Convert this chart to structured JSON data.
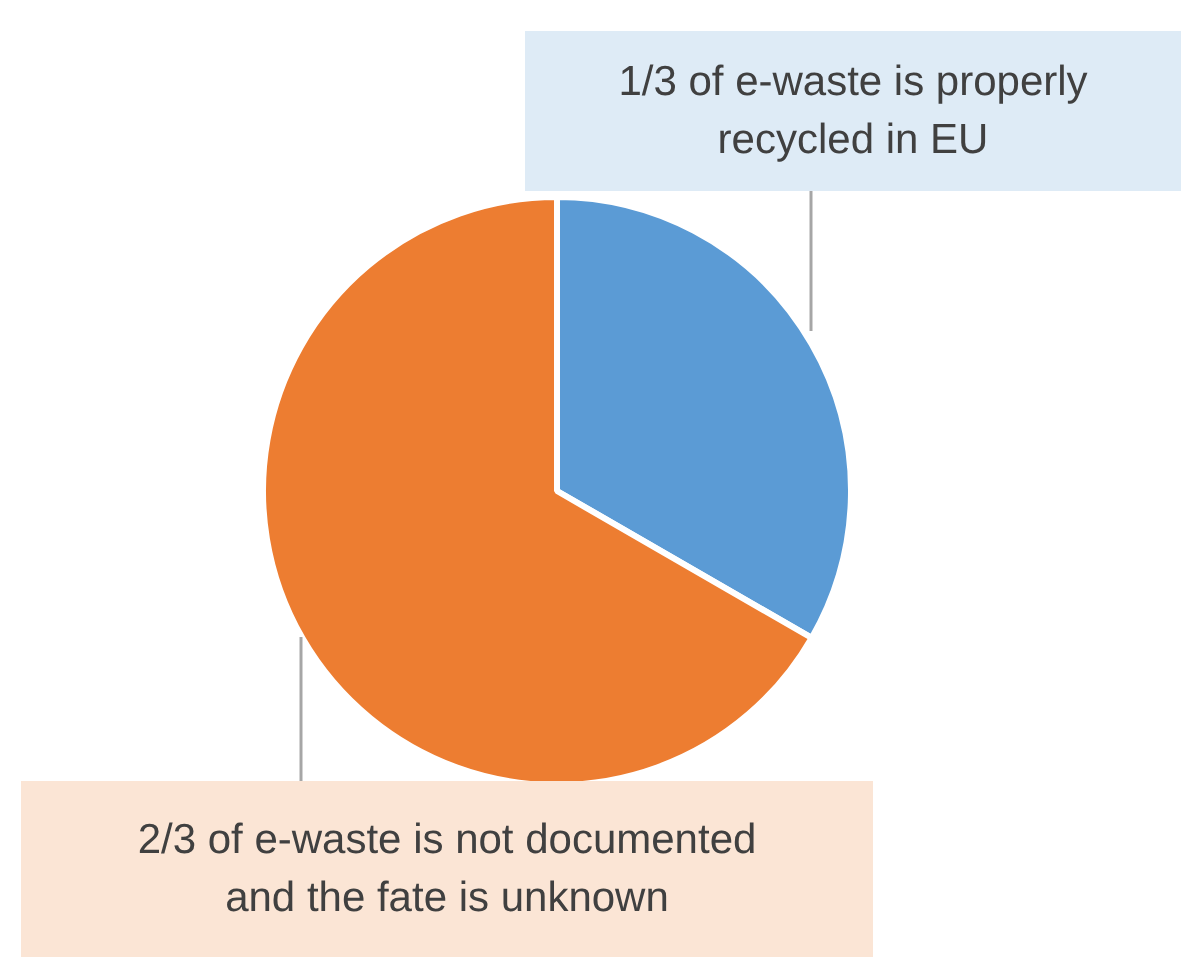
{
  "chart_data": {
    "type": "pie",
    "categories": [
      "1/3 of e-waste is properly recycled in EU",
      "2/3 of e-waste is not documented and the fate is unknown"
    ],
    "values": [
      33.33,
      66.67
    ],
    "colors": [
      "#5b9bd5",
      "#ed7d31"
    ]
  }
}
